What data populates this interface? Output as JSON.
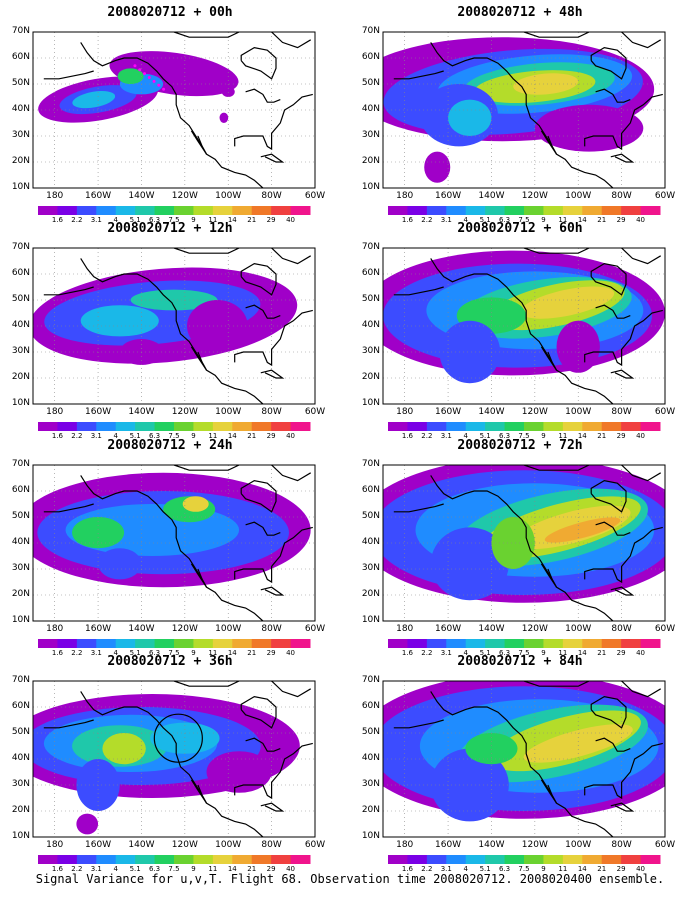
{
  "colorbar": {
    "colors": [
      "#a000c8",
      "#7a00e6",
      "#3c4cff",
      "#1f8cff",
      "#1ab8e8",
      "#1fc8aa",
      "#22d060",
      "#6ad230",
      "#b4dc2a",
      "#e6d23c",
      "#f0aa32",
      "#f07828",
      "#f04040",
      "#f0148c"
    ],
    "labels": [
      "1.6",
      "2.2",
      "3.1",
      "4",
      "5.1",
      "6.3",
      "7.5",
      "9",
      "11",
      "14",
      "21",
      "29",
      "40"
    ]
  },
  "map": {
    "lat_ticks": [
      "10N",
      "20N",
      "30N",
      "40N",
      "50N",
      "60N",
      "70N"
    ],
    "lon_ticks": [
      "180",
      "160W",
      "140W",
      "120W",
      "100W",
      "80W",
      "60W"
    ],
    "lat_range": [
      10,
      70
    ],
    "lon_range": [
      -190,
      -60
    ]
  },
  "panels": [
    {
      "title": "2008020712 + 00h"
    },
    {
      "title": "2008020712 + 48h"
    },
    {
      "title": "2008020712 + 12h"
    },
    {
      "title": "2008020712 + 60h"
    },
    {
      "title": "2008020712 + 24h"
    },
    {
      "title": "2008020712 + 72h"
    },
    {
      "title": "2008020712 + 36h"
    },
    {
      "title": "2008020712 + 84h"
    }
  ],
  "caption": "Signal Variance for u,v,T. Flight 68. Observation time 2008020712. 2008020400 ensemble."
}
